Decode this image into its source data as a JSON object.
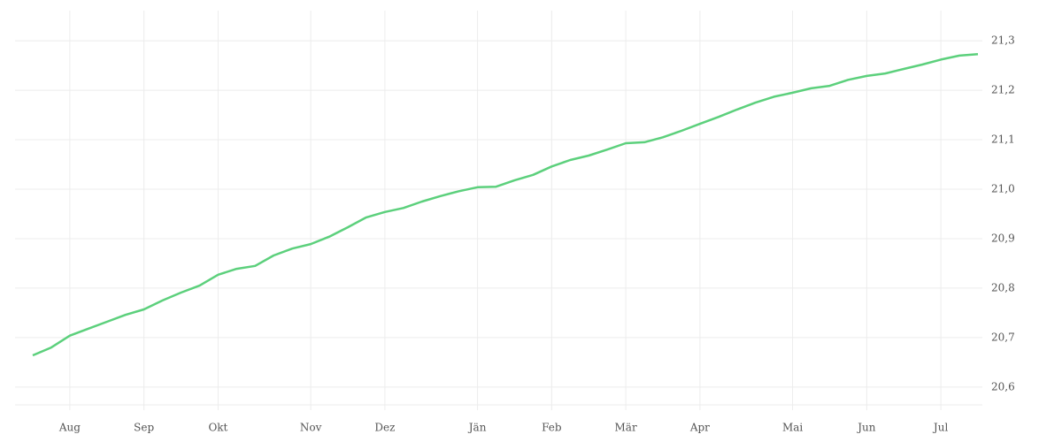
{
  "chart_data": {
    "type": "line",
    "categories": [
      null,
      null,
      "Aug",
      null,
      null,
      null,
      "Sep",
      null,
      null,
      null,
      "Okt",
      null,
      null,
      null,
      null,
      "Nov",
      null,
      null,
      null,
      "Dez",
      null,
      null,
      null,
      null,
      "Jän",
      null,
      null,
      null,
      "Feb",
      null,
      null,
      null,
      "Mär",
      null,
      null,
      null,
      "Apr",
      null,
      null,
      null,
      null,
      "Mai",
      null,
      null,
      null,
      "Jun",
      null,
      null,
      null,
      "Jul",
      null,
      null
    ],
    "values": [
      20.664,
      20.68,
      20.704,
      20.718,
      20.732,
      20.746,
      20.757,
      20.775,
      20.791,
      20.805,
      20.827,
      20.839,
      20.845,
      20.866,
      20.88,
      20.889,
      20.904,
      20.923,
      20.943,
      20.954,
      20.962,
      20.975,
      20.986,
      20.996,
      21.004,
      21.005,
      21.018,
      21.029,
      21.046,
      21.059,
      21.068,
      21.08,
      21.093,
      21.095,
      21.105,
      21.118,
      21.132,
      21.146,
      21.161,
      21.175,
      21.187,
      21.195,
      21.204,
      21.209,
      21.221,
      21.229,
      21.234,
      21.243,
      21.252,
      21.262,
      21.27,
      21.273
    ],
    "color": "#5cd07c",
    "ylim": [
      20.564,
      21.361
    ],
    "yticks": [
      {
        "value": 20.6,
        "label": "20,6"
      },
      {
        "value": 20.7,
        "label": "20,7"
      },
      {
        "value": 20.8,
        "label": "20,8"
      },
      {
        "value": 20.9,
        "label": "20,9"
      },
      {
        "value": 21.0,
        "label": "21,0"
      },
      {
        "value": 21.1,
        "label": "21,1"
      },
      {
        "value": 21.2,
        "label": "21,2"
      },
      {
        "value": 21.3,
        "label": "21,3"
      }
    ],
    "grid": true
  }
}
